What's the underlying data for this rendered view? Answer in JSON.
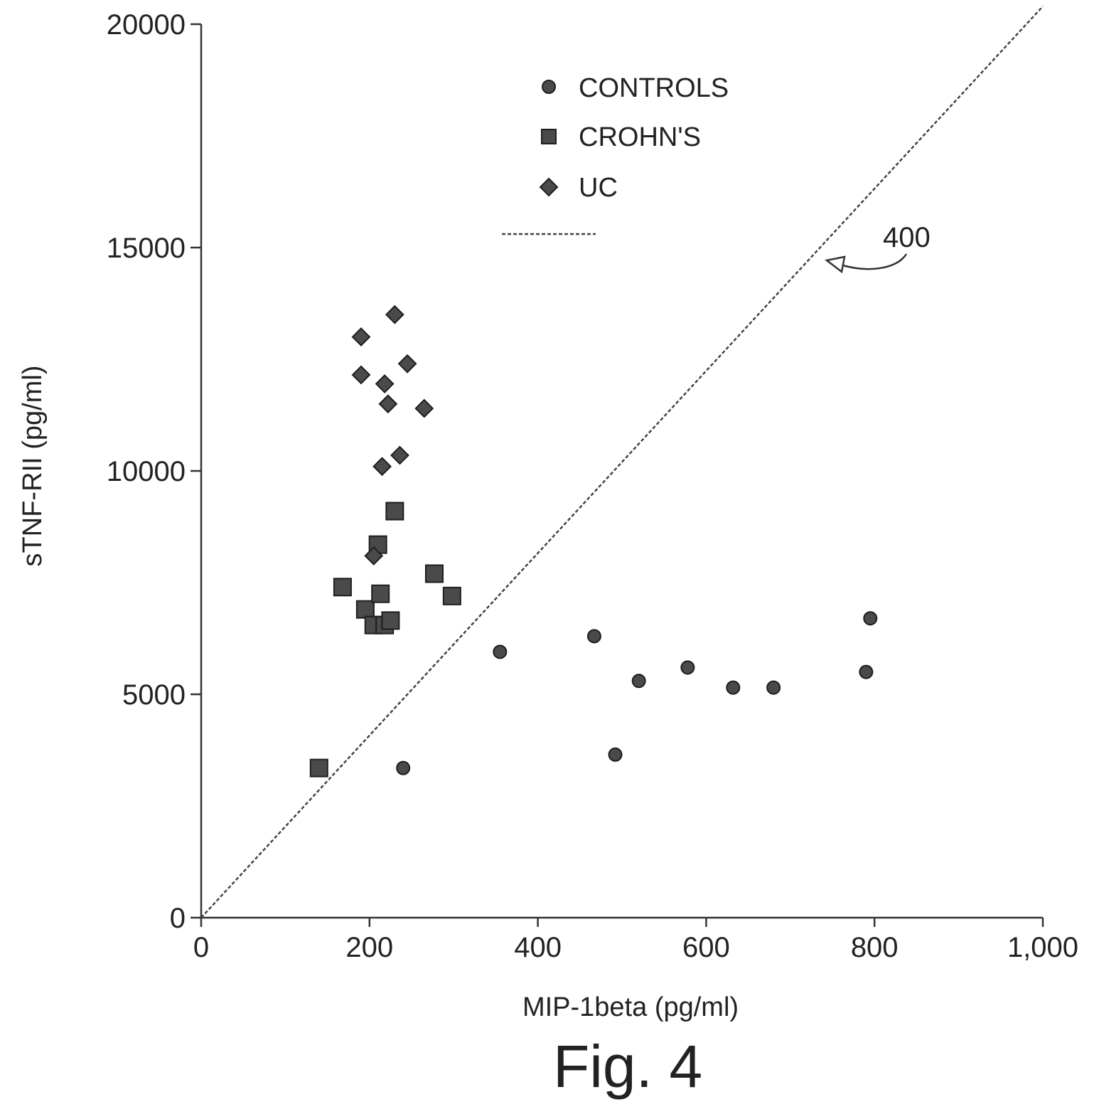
{
  "figure": {
    "caption": "Fig. 4"
  },
  "chart_data": {
    "type": "scatter",
    "xlabel": "MIP-1beta (pg/ml)",
    "ylabel": "sTNF-RII (pg/ml)",
    "xlim": [
      0,
      1000
    ],
    "ylim": [
      0,
      20000
    ],
    "x_ticks": [
      0,
      200,
      400,
      600,
      800,
      1000
    ],
    "x_tick_labels": [
      "0",
      "200",
      "400",
      "600",
      "800",
      "1,000"
    ],
    "y_ticks": [
      0,
      5000,
      10000,
      15000,
      20000
    ],
    "y_tick_labels": [
      "0",
      "5000",
      "10000",
      "15000",
      "20000"
    ],
    "grid": false,
    "legend_position": "top-center",
    "series": [
      {
        "name": "CONTROLS",
        "marker": "circle",
        "color": "#4a4a4a",
        "points": [
          [
            240,
            3350
          ],
          [
            355,
            5950
          ],
          [
            467,
            6300
          ],
          [
            492,
            3650
          ],
          [
            520,
            5300
          ],
          [
            578,
            5600
          ],
          [
            632,
            5150
          ],
          [
            680,
            5150
          ],
          [
            790,
            5500
          ],
          [
            795,
            6700
          ]
        ]
      },
      {
        "name": "CROHN'S",
        "marker": "square",
        "color": "#4a4a4a",
        "points": [
          [
            140,
            3350
          ],
          [
            168,
            7400
          ],
          [
            195,
            6900
          ],
          [
            205,
            6550
          ],
          [
            210,
            8350
          ],
          [
            213,
            7250
          ],
          [
            218,
            6550
          ],
          [
            225,
            6650
          ],
          [
            230,
            9100
          ],
          [
            277,
            7700
          ],
          [
            298,
            7200
          ]
        ]
      },
      {
        "name": "UC",
        "marker": "diamond",
        "color": "#4a4a4a",
        "points": [
          [
            190,
            13000
          ],
          [
            190,
            12150
          ],
          [
            205,
            8100
          ],
          [
            215,
            10100
          ],
          [
            218,
            11950
          ],
          [
            222,
            11500
          ],
          [
            230,
            13500
          ],
          [
            236,
            10350
          ],
          [
            245,
            12400
          ],
          [
            265,
            11400
          ]
        ]
      }
    ],
    "reference_line": {
      "label": "400",
      "style": "dashed",
      "from": [
        0,
        0
      ],
      "to": [
        1000,
        20400
      ]
    }
  }
}
